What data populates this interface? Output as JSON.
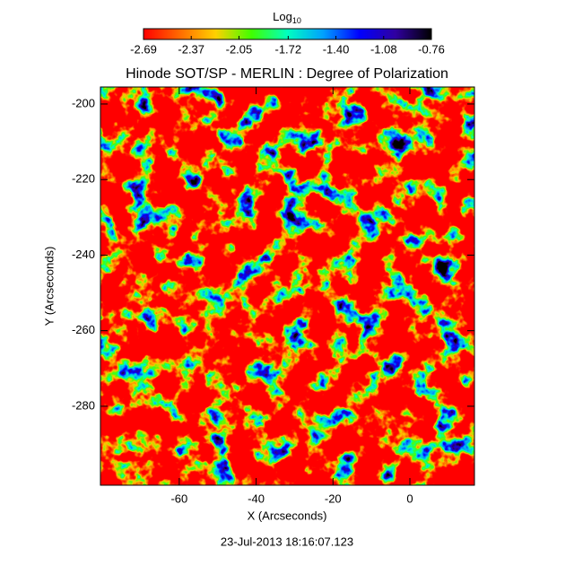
{
  "chart_data": {
    "type": "image",
    "title": "Hinode SOT/SP - MERLIN : Degree of Polarization",
    "x_label": "X (Arcseconds)",
    "y_label": "Y (Arcseconds)",
    "xlim": [
      -80.5,
      16.8
    ],
    "ylim": [
      -300.9,
      -195.5
    ],
    "xticks": [
      -60,
      -40,
      -20,
      0
    ],
    "yticks": [
      -200,
      -220,
      -240,
      -260,
      -280
    ],
    "colorbar": {
      "label": "Log",
      "label_sub": "10",
      "lim": [
        -2.69,
        -0.76
      ],
      "ticks": [
        -2.69,
        -2.37,
        -2.05,
        -1.72,
        {
          "value": -1.4,
          "label": "-1.40"
        },
        -1.08,
        -0.76
      ],
      "colors": [
        "#ff0000",
        "#ff6a00",
        "#ffd000",
        "#40ff00",
        "#00ffc0",
        "#00a0ff",
        "#0000ff",
        "#3000a0",
        "#000000"
      ]
    },
    "timestamp": "23-Jul-2013 18:16:07.123"
  }
}
